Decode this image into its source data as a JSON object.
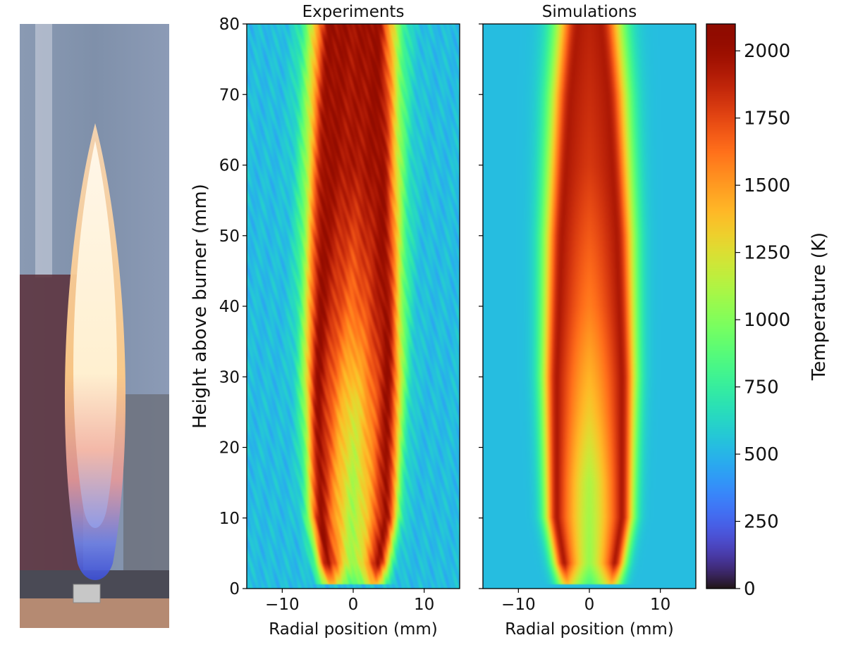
{
  "photo": {
    "description_label": "flame-photo"
  },
  "chart_data": [
    {
      "type": "heatmap",
      "title": "Experiments",
      "xlabel": "Radial position (mm)",
      "ylabel": "Height above burner (mm)",
      "xlim": [
        -15,
        15
      ],
      "ylim": [
        0,
        80
      ],
      "xticks": [
        -10,
        0,
        10
      ],
      "xticklabels": [
        "−10",
        "0",
        "10"
      ],
      "yticks": [
        0,
        10,
        20,
        30,
        40,
        50,
        60,
        70,
        80
      ],
      "yticklabels": [
        "0",
        "10",
        "20",
        "30",
        "40",
        "50",
        "60",
        "70",
        "80"
      ],
      "field": {
        "ambient_K": 300,
        "peak_K": 2050,
        "core_K": 1200,
        "flame_anchor_height_mm": 0.5,
        "peak_radius_mm_at": [
          [
            0.5,
            3.0
          ],
          [
            10,
            4.5
          ],
          [
            30,
            4.8
          ],
          [
            50,
            4.2
          ],
          [
            70,
            3.5
          ],
          [
            80,
            3.0
          ]
        ],
        "core_min_K_at": [
          [
            0,
            900
          ],
          [
            15,
            1000
          ],
          [
            25,
            1150
          ],
          [
            40,
            1600
          ],
          [
            60,
            1950
          ],
          [
            80,
            2000
          ]
        ],
        "pattern": "noisy"
      }
    },
    {
      "type": "heatmap",
      "title": "Simulations",
      "xlabel": "Radial position (mm)",
      "xlim": [
        -15,
        15
      ],
      "ylim": [
        0,
        80
      ],
      "xticks": [
        -10,
        0,
        10
      ],
      "xticklabels": [
        "−10",
        "0",
        "10"
      ],
      "yticks": [
        0,
        10,
        20,
        30,
        40,
        50,
        60,
        70,
        80
      ],
      "field": {
        "ambient_K": 300,
        "peak_K": 1950,
        "core_K": 1200,
        "flame_anchor_height_mm": 0.5,
        "peak_radius_mm_at": [
          [
            0.5,
            3.0
          ],
          [
            10,
            4.5
          ],
          [
            30,
            4.5
          ],
          [
            50,
            3.8
          ],
          [
            70,
            2.5
          ],
          [
            80,
            1.5
          ]
        ],
        "core_min_K_at": [
          [
            0,
            900
          ],
          [
            15,
            1000
          ],
          [
            25,
            1250
          ],
          [
            40,
            1550
          ],
          [
            60,
            1800
          ],
          [
            80,
            1900
          ]
        ],
        "pattern": "smooth"
      }
    }
  ],
  "colorbar": {
    "label": "Temperature (K)",
    "range": [
      0,
      2100
    ],
    "ticks": [
      0,
      250,
      500,
      750,
      1000,
      1250,
      1500,
      1750,
      2000
    ],
    "ticklabels": [
      "0",
      "250",
      "500",
      "750",
      "1000",
      "1250",
      "1500",
      "1750",
      "2000"
    ],
    "colormap": "turbo"
  }
}
